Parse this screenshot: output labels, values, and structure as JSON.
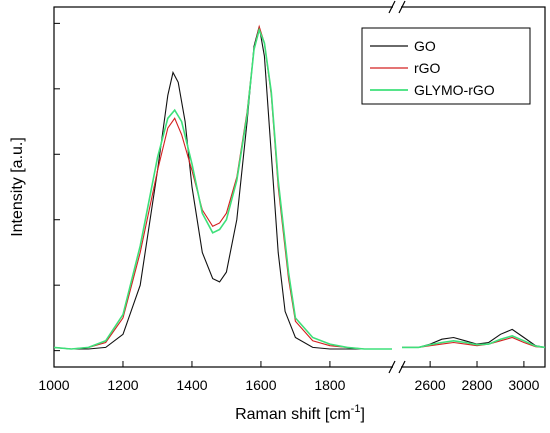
{
  "chart_data": {
    "type": "line",
    "title": "",
    "xlabel": "Raman shift [cm",
    "xlabel_sup": "-1",
    "xlabel_end": "]",
    "ylabel": "Intensity [a.u.]",
    "y_tick_labels": "none",
    "axis_break": true,
    "x_segments": [
      {
        "xlim": [
          1000,
          1980
        ],
        "ticks": [
          1000,
          1200,
          1400,
          1600,
          1800
        ]
      },
      {
        "xlim": [
          2480,
          3090
        ],
        "ticks": [
          2600,
          2800,
          3000
        ]
      }
    ],
    "ylim": [
      -0.05,
      1.05
    ],
    "y_ticks": [
      0.0,
      0.2,
      0.4,
      0.6,
      0.8,
      1.0
    ],
    "legend_position": "top-right",
    "grid": false,
    "series": [
      {
        "name": "GO",
        "color": "#111111",
        "points": [
          [
            1000,
            0.01
          ],
          [
            1050,
            0.005
          ],
          [
            1100,
            0.005
          ],
          [
            1150,
            0.01
          ],
          [
            1200,
            0.05
          ],
          [
            1250,
            0.2
          ],
          [
            1300,
            0.55
          ],
          [
            1330,
            0.78
          ],
          [
            1345,
            0.85
          ],
          [
            1360,
            0.82
          ],
          [
            1380,
            0.7
          ],
          [
            1400,
            0.5
          ],
          [
            1430,
            0.3
          ],
          [
            1460,
            0.22
          ],
          [
            1480,
            0.21
          ],
          [
            1500,
            0.24
          ],
          [
            1530,
            0.4
          ],
          [
            1560,
            0.7
          ],
          [
            1580,
            0.93
          ],
          [
            1595,
            0.99
          ],
          [
            1610,
            0.9
          ],
          [
            1630,
            0.6
          ],
          [
            1650,
            0.3
          ],
          [
            1670,
            0.12
          ],
          [
            1700,
            0.04
          ],
          [
            1750,
            0.01
          ],
          [
            1800,
            0.005
          ],
          [
            1850,
            0.005
          ],
          [
            1900,
            0.005
          ],
          [
            1980,
            0.005
          ]
        ]
      },
      {
        "name": "rGO",
        "color": "#d42020",
        "points": [
          [
            1000,
            0.01
          ],
          [
            1050,
            0.005
          ],
          [
            1100,
            0.01
          ],
          [
            1150,
            0.025
          ],
          [
            1200,
            0.1
          ],
          [
            1250,
            0.3
          ],
          [
            1300,
            0.55
          ],
          [
            1330,
            0.68
          ],
          [
            1350,
            0.71
          ],
          [
            1370,
            0.66
          ],
          [
            1400,
            0.55
          ],
          [
            1430,
            0.43
          ],
          [
            1460,
            0.38
          ],
          [
            1480,
            0.39
          ],
          [
            1500,
            0.42
          ],
          [
            1530,
            0.53
          ],
          [
            1560,
            0.73
          ],
          [
            1580,
            0.92
          ],
          [
            1595,
            0.99
          ],
          [
            1610,
            0.94
          ],
          [
            1630,
            0.78
          ],
          [
            1650,
            0.5
          ],
          [
            1680,
            0.22
          ],
          [
            1700,
            0.09
          ],
          [
            1750,
            0.03
          ],
          [
            1800,
            0.015
          ],
          [
            1850,
            0.01
          ],
          [
            1900,
            0.005
          ],
          [
            1980,
            0.005
          ]
        ]
      },
      {
        "name": "GLYMO-rGO",
        "color": "#3ee07a",
        "points": [
          [
            1000,
            0.01
          ],
          [
            1050,
            0.005
          ],
          [
            1100,
            0.01
          ],
          [
            1150,
            0.03
          ],
          [
            1200,
            0.11
          ],
          [
            1250,
            0.32
          ],
          [
            1300,
            0.59
          ],
          [
            1330,
            0.71
          ],
          [
            1350,
            0.735
          ],
          [
            1370,
            0.7
          ],
          [
            1400,
            0.57
          ],
          [
            1430,
            0.42
          ],
          [
            1460,
            0.36
          ],
          [
            1480,
            0.37
          ],
          [
            1500,
            0.4
          ],
          [
            1530,
            0.52
          ],
          [
            1560,
            0.72
          ],
          [
            1580,
            0.92
          ],
          [
            1595,
            0.98
          ],
          [
            1610,
            0.94
          ],
          [
            1630,
            0.79
          ],
          [
            1650,
            0.52
          ],
          [
            1680,
            0.24
          ],
          [
            1700,
            0.1
          ],
          [
            1750,
            0.04
          ],
          [
            1800,
            0.02
          ],
          [
            1850,
            0.01
          ],
          [
            1900,
            0.005
          ],
          [
            1980,
            0.005
          ]
        ]
      }
    ],
    "series_high": [
      {
        "name": "GO",
        "points": [
          [
            2480,
            0.01
          ],
          [
            2550,
            0.01
          ],
          [
            2600,
            0.02
          ],
          [
            2650,
            0.035
          ],
          [
            2700,
            0.04
          ],
          [
            2750,
            0.03
          ],
          [
            2800,
            0.02
          ],
          [
            2850,
            0.025
          ],
          [
            2900,
            0.05
          ],
          [
            2950,
            0.065
          ],
          [
            3000,
            0.04
          ],
          [
            3050,
            0.015
          ],
          [
            3090,
            0.01
          ]
        ]
      },
      {
        "name": "rGO",
        "points": [
          [
            2480,
            0.01
          ],
          [
            2550,
            0.01
          ],
          [
            2600,
            0.015
          ],
          [
            2650,
            0.02
          ],
          [
            2700,
            0.025
          ],
          [
            2750,
            0.02
          ],
          [
            2800,
            0.015
          ],
          [
            2850,
            0.02
          ],
          [
            2900,
            0.03
          ],
          [
            2950,
            0.04
          ],
          [
            3000,
            0.025
          ],
          [
            3050,
            0.012
          ],
          [
            3090,
            0.01
          ]
        ]
      },
      {
        "name": "GLYMO-rGO",
        "points": [
          [
            2480,
            0.01
          ],
          [
            2550,
            0.01
          ],
          [
            2600,
            0.018
          ],
          [
            2650,
            0.025
          ],
          [
            2700,
            0.03
          ],
          [
            2750,
            0.025
          ],
          [
            2800,
            0.018
          ],
          [
            2850,
            0.02
          ],
          [
            2900,
            0.035
          ],
          [
            2950,
            0.045
          ],
          [
            3000,
            0.03
          ],
          [
            3050,
            0.014
          ],
          [
            3090,
            0.01
          ]
        ]
      }
    ]
  }
}
